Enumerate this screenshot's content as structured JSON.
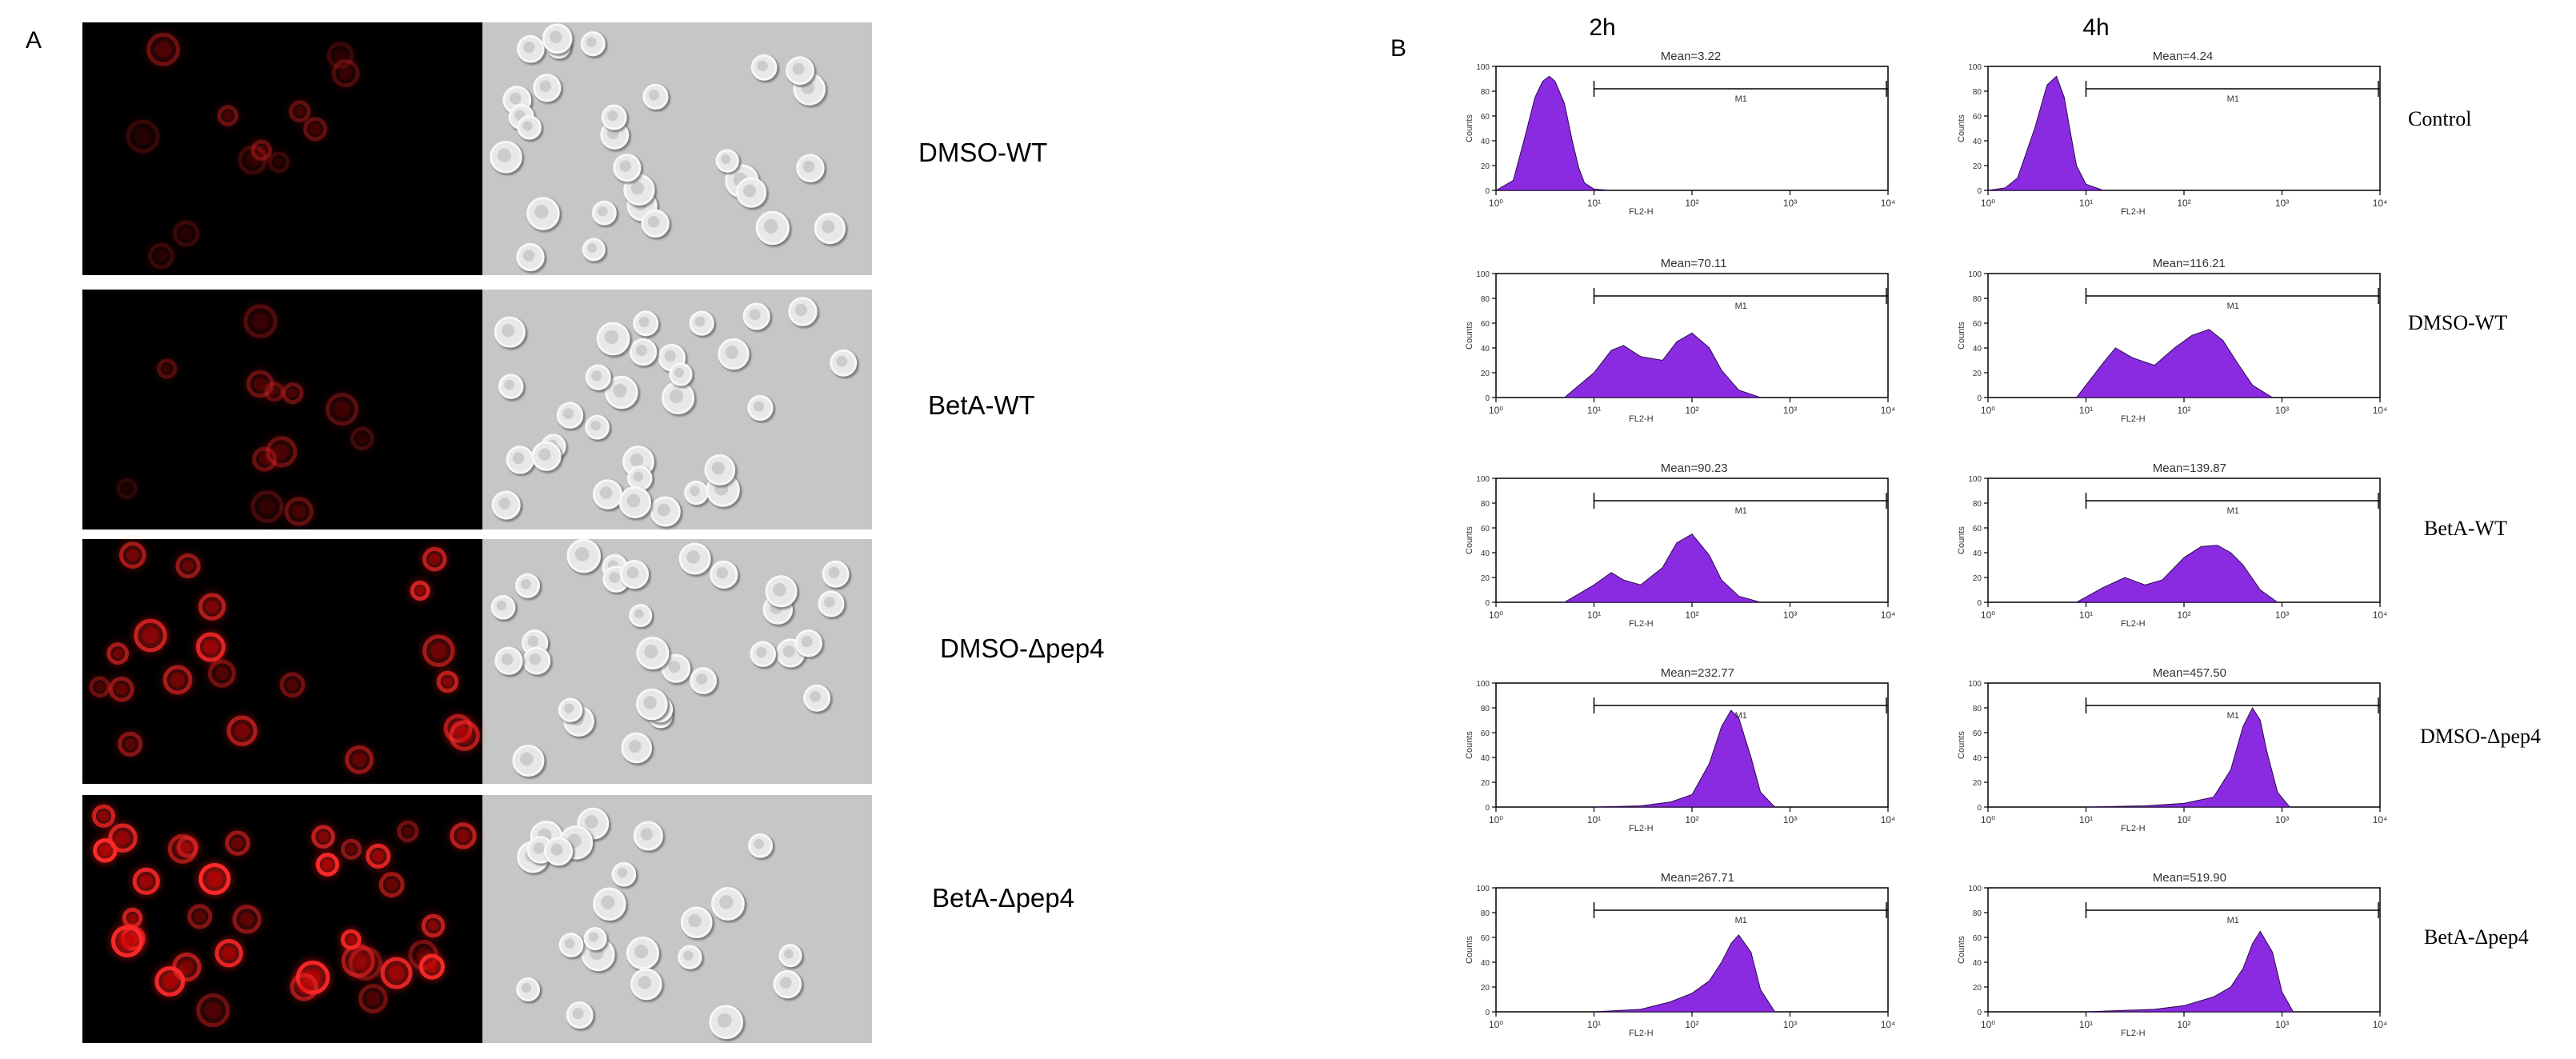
{
  "panel_a": {
    "letter": "A",
    "rows": [
      {
        "label": "DMSO-WT",
        "fluorescence": "low"
      },
      {
        "label": "BetA-WT",
        "fluorescence": "low"
      },
      {
        "label": "DMSO-Δpep4",
        "fluorescence": "medium"
      },
      {
        "label": "BetA-Δpep4",
        "fluorescence": "high"
      }
    ]
  },
  "panel_b": {
    "letter": "B",
    "time_points": [
      "2h",
      "4h"
    ],
    "gate_label": "M1",
    "axis": {
      "ylabel": "Counts",
      "xlabel": "FL2-H",
      "x_ticks": [
        "10⁰",
        "10¹",
        "10²",
        "10³",
        "10⁴"
      ],
      "y_ticks": [
        "0",
        "20",
        "40",
        "60",
        "80",
        "100"
      ]
    },
    "conditions": [
      "Control",
      "DMSO-WT",
      "BetA-WT",
      "DMSO-Δpep4",
      "BetA-Δpep4"
    ]
  },
  "chart_data": [
    {
      "type": "area",
      "row": "Control",
      "time": "2h",
      "title": "Mean=3.22",
      "xlabel": "FL2-H",
      "ylabel": "Counts",
      "xscale": "log",
      "xlim": [
        1,
        10000
      ],
      "ylim": [
        0,
        100
      ],
      "x": [
        1,
        1.5,
        2,
        2.5,
        3,
        3.5,
        4,
        5,
        6,
        7,
        8,
        10,
        15
      ],
      "y": [
        0,
        8,
        45,
        75,
        88,
        92,
        88,
        70,
        40,
        18,
        6,
        1,
        0
      ]
    },
    {
      "type": "area",
      "row": "Control",
      "time": "4h",
      "title": "Mean=4.24",
      "xlabel": "FL2-H",
      "ylabel": "Counts",
      "xscale": "log",
      "xlim": [
        1,
        10000
      ],
      "ylim": [
        0,
        100
      ],
      "x": [
        1,
        1.5,
        2,
        3,
        4,
        5,
        6,
        7,
        8,
        10,
        15
      ],
      "y": [
        0,
        2,
        10,
        50,
        85,
        92,
        75,
        45,
        20,
        5,
        0
      ]
    },
    {
      "type": "area",
      "row": "DMSO-WT",
      "time": "2h",
      "title": "Mean=70.11",
      "xlabel": "FL2-H",
      "ylabel": "Counts",
      "xscale": "log",
      "xlim": [
        1,
        10000
      ],
      "ylim": [
        0,
        100
      ],
      "x": [
        5,
        10,
        15,
        20,
        30,
        50,
        70,
        100,
        150,
        200,
        300,
        500
      ],
      "y": [
        0,
        20,
        38,
        42,
        33,
        30,
        45,
        52,
        40,
        22,
        6,
        0
      ]
    },
    {
      "type": "area",
      "row": "DMSO-WT",
      "time": "4h",
      "title": "Mean=116.21",
      "xlabel": "FL2-H",
      "ylabel": "Counts",
      "xscale": "log",
      "xlim": [
        1,
        10000
      ],
      "ylim": [
        0,
        100
      ],
      "x": [
        8,
        15,
        20,
        30,
        50,
        80,
        120,
        180,
        250,
        350,
        500,
        800
      ],
      "y": [
        0,
        28,
        40,
        32,
        26,
        40,
        50,
        55,
        46,
        28,
        10,
        0
      ]
    },
    {
      "type": "area",
      "row": "BetA-WT",
      "time": "2h",
      "title": "Mean=90.23",
      "xlabel": "FL2-H",
      "ylabel": "Counts",
      "xscale": "log",
      "xlim": [
        1,
        10000
      ],
      "ylim": [
        0,
        100
      ],
      "x": [
        5,
        10,
        15,
        20,
        30,
        50,
        70,
        100,
        150,
        200,
        300,
        500
      ],
      "y": [
        0,
        14,
        24,
        18,
        14,
        28,
        48,
        55,
        38,
        18,
        5,
        0
      ]
    },
    {
      "type": "area",
      "row": "BetA-WT",
      "time": "4h",
      "title": "Mean=139.87",
      "xlabel": "FL2-H",
      "ylabel": "Counts",
      "xscale": "log",
      "xlim": [
        1,
        10000
      ],
      "ylim": [
        0,
        100
      ],
      "x": [
        8,
        15,
        25,
        40,
        60,
        100,
        150,
        220,
        300,
        400,
        600,
        900
      ],
      "y": [
        0,
        12,
        20,
        14,
        18,
        36,
        45,
        46,
        40,
        30,
        10,
        0
      ]
    },
    {
      "type": "area",
      "row": "DMSO-Δpep4",
      "time": "2h",
      "title": "Mean=232.77",
      "xlabel": "FL2-H",
      "ylabel": "Counts",
      "xscale": "log",
      "xlim": [
        1,
        10000
      ],
      "ylim": [
        0,
        100
      ],
      "x": [
        10,
        30,
        60,
        100,
        150,
        200,
        250,
        300,
        400,
        500,
        700
      ],
      "y": [
        0,
        1,
        4,
        10,
        35,
        65,
        78,
        72,
        40,
        12,
        0
      ]
    },
    {
      "type": "area",
      "row": "DMSO-Δpep4",
      "time": "4h",
      "title": "Mean=457.50",
      "xlabel": "FL2-H",
      "ylabel": "Counts",
      "xscale": "log",
      "xlim": [
        1,
        10000
      ],
      "ylim": [
        0,
        100
      ],
      "x": [
        10,
        40,
        100,
        200,
        300,
        400,
        500,
        600,
        700,
        900,
        1200
      ],
      "y": [
        0,
        1,
        3,
        8,
        30,
        65,
        80,
        70,
        45,
        12,
        0
      ]
    },
    {
      "type": "area",
      "row": "BetA-Δpep4",
      "time": "2h",
      "title": "Mean=267.71",
      "xlabel": "FL2-H",
      "ylabel": "Counts",
      "xscale": "log",
      "xlim": [
        1,
        10000
      ],
      "ylim": [
        0,
        100
      ],
      "x": [
        10,
        30,
        60,
        100,
        150,
        200,
        250,
        300,
        400,
        500,
        700
      ],
      "y": [
        0,
        2,
        8,
        15,
        25,
        40,
        55,
        62,
        48,
        18,
        0
      ]
    },
    {
      "type": "area",
      "row": "BetA-Δpep4",
      "time": "4h",
      "title": "Mean=519.90",
      "xlabel": "FL2-H",
      "ylabel": "Counts",
      "xscale": "log",
      "xlim": [
        1,
        10000
      ],
      "ylim": [
        0,
        100
      ],
      "x": [
        10,
        50,
        100,
        200,
        300,
        400,
        500,
        600,
        800,
        1000,
        1300
      ],
      "y": [
        0,
        2,
        5,
        12,
        20,
        35,
        55,
        65,
        48,
        16,
        0
      ]
    }
  ]
}
